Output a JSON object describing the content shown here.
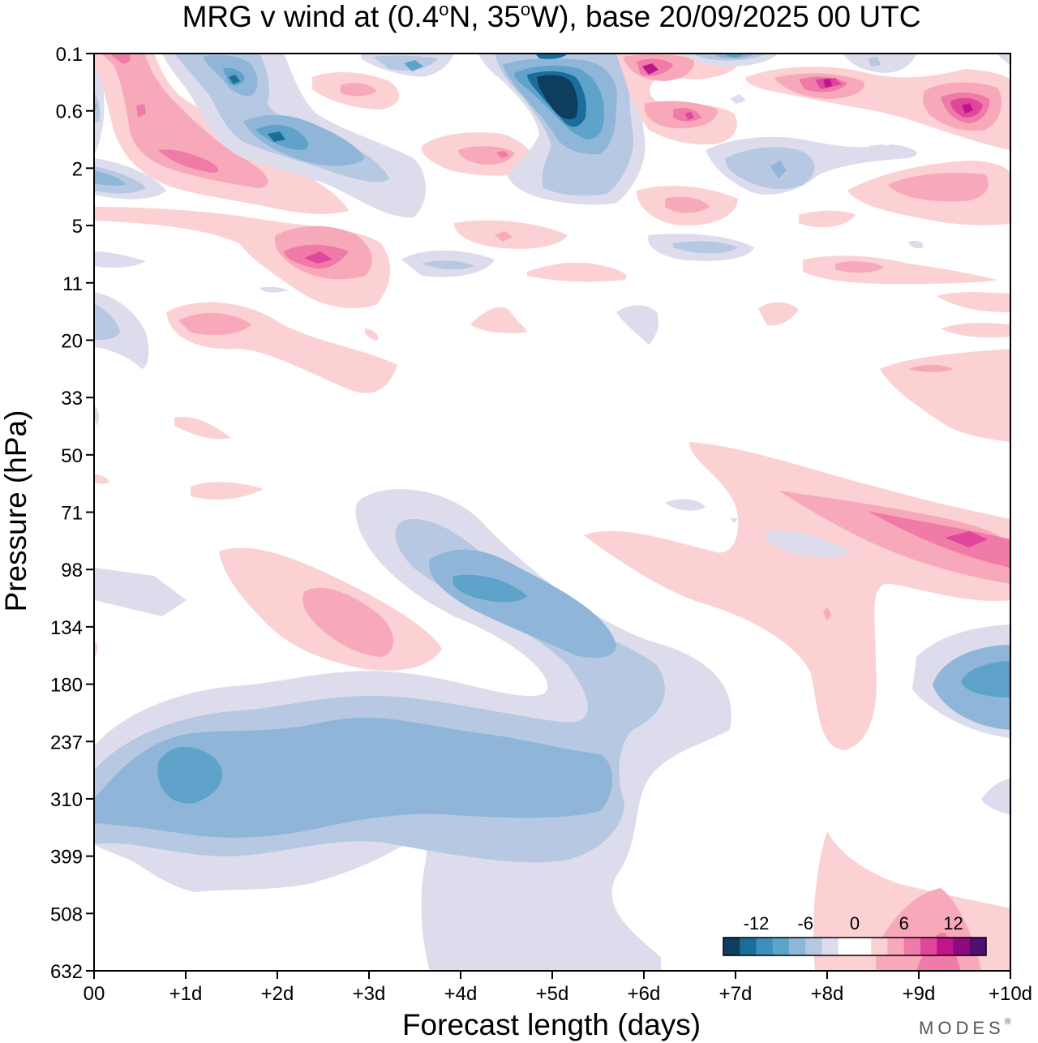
{
  "chart_data": {
    "type": "heatmap",
    "title": "MRG v wind at (0.4°N, 35°W),  base 20/09/2025  00 UTC",
    "title_parts": {
      "prefix": "MRG v wind at (0.4",
      "deg1": "o",
      "mid": "N, 35",
      "deg2": "o",
      "suffix": "W),  base 20/09/2025  00 UTC"
    },
    "xlabel": "Forecast length (days)",
    "ylabel": "Pressure (hPa)",
    "x_ticks": [
      "00",
      "+1d",
      "+2d",
      "+3d",
      "+4d",
      "+5d",
      "+6d",
      "+7d",
      "+8d",
      "+9d",
      "+10d"
    ],
    "x_range_days": [
      0,
      10
    ],
    "y_ticks": [
      "0.1",
      "0.6",
      "2",
      "5",
      "11",
      "20",
      "33",
      "50",
      "71",
      "98",
      "134",
      "180",
      "237",
      "310",
      "399",
      "508",
      "632"
    ],
    "colorbar": {
      "labels": [
        "-12",
        "-6",
        "0",
        "6",
        "12"
      ],
      "label_values": [
        -12,
        -6,
        0,
        6,
        12
      ],
      "range": [
        -16,
        16
      ],
      "step": 2,
      "colors": [
        "#0f3d5e",
        "#1c6e9a",
        "#3d8fbd",
        "#5fa3cb",
        "#8fb6d8",
        "#b6c8e2",
        "#dcdcec",
        "#ffffff",
        "#ffffff",
        "#fbd1d3",
        "#f7a8b9",
        "#f07aa8",
        "#e0469b",
        "#c0158a",
        "#8e0a7e",
        "#4f1070"
      ]
    },
    "features": [
      {
        "name": "upper-trop-negative-band",
        "day": [
          0,
          5.6
        ],
        "pressure": [
          180,
          399
        ],
        "value_min": -10
      },
      {
        "name": "negative-core-day1",
        "day": 1,
        "pressure": 310,
        "value_min": -10
      },
      {
        "name": "negative-core-day4-5",
        "day": 4.5,
        "pressure": 110,
        "value_min": -10
      },
      {
        "name": "positive-core-day9-10",
        "day": 9.5,
        "pressure": 90,
        "value_max": 10
      },
      {
        "name": "negative-core-day10",
        "day": 10,
        "pressure": 180,
        "value_min": -10
      },
      {
        "name": "strat-negative-max-day5",
        "day": 5,
        "pressure": 0.5,
        "value_min": -16
      },
      {
        "name": "strat-positive-max-day9.5",
        "day": 9.5,
        "pressure": 0.6,
        "value_max": 12
      }
    ]
  },
  "credit": "MODES",
  "credit_mark": "®"
}
